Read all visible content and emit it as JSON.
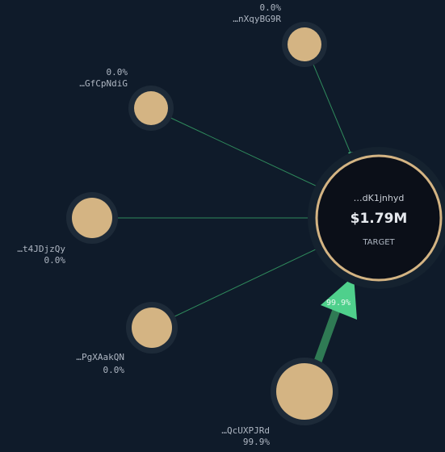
{
  "target": {
    "label": "…dK1jnhyd",
    "value": "$1.79M",
    "role": "TARGET"
  },
  "nodes": [
    {
      "label": "…nXqyBG9R",
      "share": "0.0%"
    },
    {
      "label": "…GfCpNdiG",
      "share": "0.0%"
    },
    {
      "label": "…t4JDjzQy",
      "share": "0.0%"
    },
    {
      "label": "…PgXAakQN",
      "share": "0.0%"
    },
    {
      "label": "…QcUXPJRd",
      "share": "99.9%"
    }
  ],
  "edge_label": "99.9%"
}
